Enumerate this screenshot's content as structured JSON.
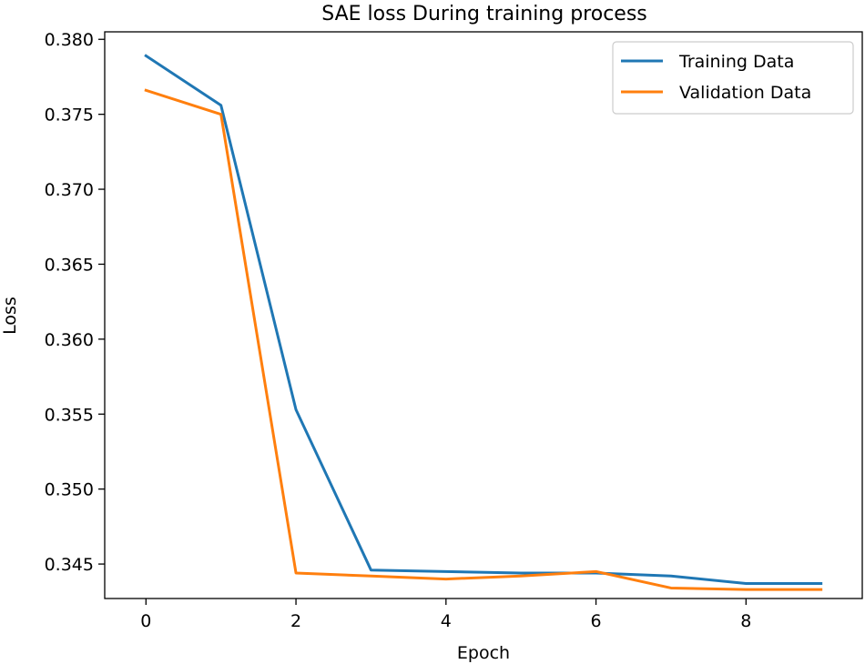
{
  "chart_data": {
    "type": "line",
    "title": "SAE loss During training process",
    "xlabel": "Epoch",
    "ylabel": "Loss",
    "x": [
      0,
      1,
      2,
      3,
      4,
      5,
      6,
      7,
      8,
      9
    ],
    "xlim": [
      -0.55,
      9.55
    ],
    "ylim": [
      0.3427,
      0.3805
    ],
    "xticks": [
      0,
      2,
      4,
      6,
      8
    ],
    "xtick_labels": [
      "0",
      "2",
      "4",
      "6",
      "8"
    ],
    "yticks": [
      0.345,
      0.35,
      0.355,
      0.36,
      0.365,
      0.37,
      0.375,
      0.38
    ],
    "ytick_labels": [
      "0.345",
      "0.350",
      "0.355",
      "0.360",
      "0.365",
      "0.370",
      "0.375",
      "0.380"
    ],
    "grid": false,
    "legend_position": "top-right",
    "series": [
      {
        "name": "Training Data",
        "color": "#1f77b4",
        "values": [
          0.3789,
          0.3756,
          0.3553,
          0.3446,
          0.3445,
          0.3444,
          0.3444,
          0.3442,
          0.3437,
          0.3437
        ]
      },
      {
        "name": "Validation Data",
        "color": "#ff7f0e",
        "values": [
          0.3766,
          0.375,
          0.3444,
          0.3442,
          0.344,
          0.3442,
          0.3445,
          0.3434,
          0.3433,
          0.3433
        ]
      }
    ]
  }
}
